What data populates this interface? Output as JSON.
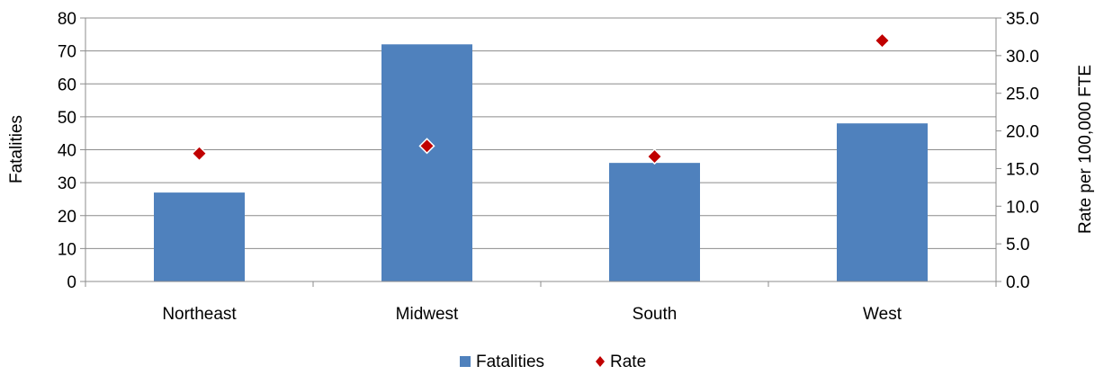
{
  "chart_data": {
    "type": "bar",
    "categories": [
      "Northeast",
      "Midwest",
      "South",
      "West"
    ],
    "series": [
      {
        "name": "Fatalities",
        "kind": "bar",
        "axis": "left",
        "values": [
          27,
          72,
          36,
          48
        ],
        "color": "#4F81BD"
      },
      {
        "name": "Rate",
        "kind": "scatter",
        "axis": "right",
        "marker": "diamond",
        "values": [
          17.0,
          18.0,
          16.6,
          32.0
        ],
        "color": "#C00000"
      }
    ],
    "ylabel": "Fatalities",
    "y2label": "Rate per 100,000 FTE",
    "ylim": [
      0,
      80
    ],
    "y2lim": [
      0,
      35
    ],
    "yticks": [
      "0",
      "10",
      "20",
      "30",
      "40",
      "50",
      "60",
      "70",
      "80"
    ],
    "y2ticks": [
      "0.0",
      "5.0",
      "10.0",
      "15.0",
      "20.0",
      "25.0",
      "30.0",
      "35.0"
    ],
    "grid": true,
    "legend": "bottom"
  }
}
